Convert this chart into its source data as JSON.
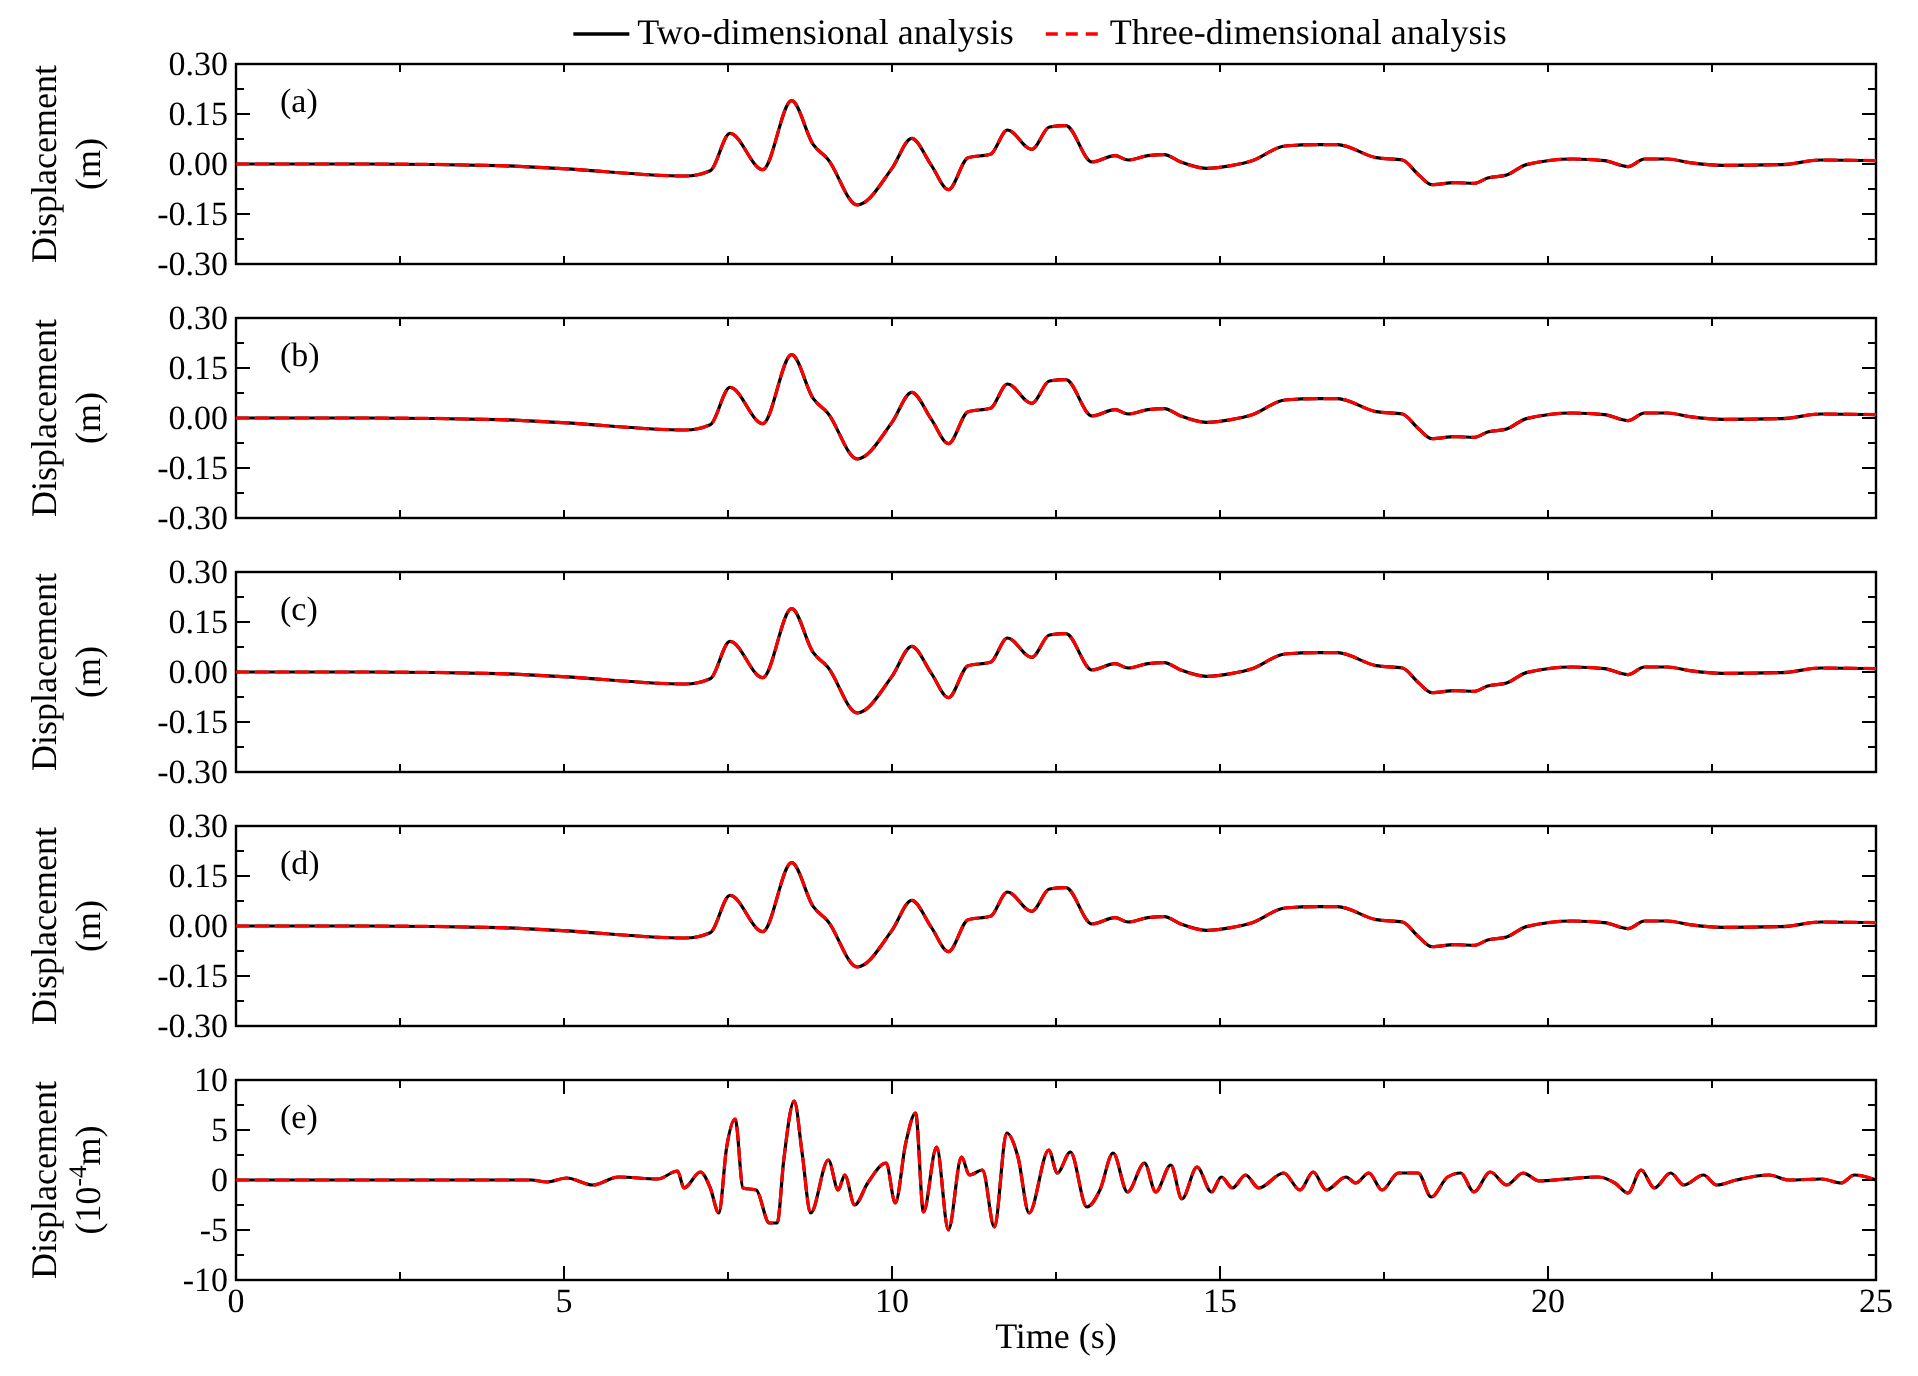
{
  "chart_data": [
    {
      "type": "line",
      "ylabel": "Displacement (m)",
      "annotations": [
        "(a)"
      ],
      "legend": "top",
      "tick_labels": "y",
      "xlim": [
        0,
        25
      ],
      "xticks": [
        {
          "value": 0,
          "label": null
        },
        {
          "value": 2.5,
          "label": null
        },
        {
          "value": 5,
          "label": null
        },
        {
          "value": 7.5,
          "label": null
        },
        {
          "value": 10,
          "label": null
        },
        {
          "value": 12.5,
          "label": null
        },
        {
          "value": 15,
          "label": null
        },
        {
          "value": 17.5,
          "label": null
        },
        {
          "value": 20,
          "label": null
        },
        {
          "value": 22.5,
          "label": null
        },
        {
          "value": 25,
          "label": null
        }
      ],
      "ylim": [
        -0.3,
        0.3
      ],
      "yticks": [
        {
          "value": -0.3,
          "label": "-0.30"
        },
        {
          "value": -0.225,
          "label": null
        },
        {
          "value": -0.15,
          "label": "-0.15"
        },
        {
          "value": -0.075,
          "label": null
        },
        {
          "value": 0,
          "label": "0.00"
        },
        {
          "value": 0.075,
          "label": null
        },
        {
          "value": 0.15,
          "label": "0.15"
        },
        {
          "value": 0.225,
          "label": null
        },
        {
          "value": 0.3,
          "label": "0.30"
        }
      ],
      "x": [
        0,
        2,
        4,
        4.9,
        6.85,
        7.23,
        7.53,
        8.03,
        8.47,
        8.8,
        9.02,
        9.47,
        10.0,
        10.3,
        10.6,
        10.86,
        11.16,
        11.5,
        11.76,
        12.13,
        12.4,
        12.65,
        13.05,
        13.4,
        13.6,
        13.9,
        14.15,
        14.4,
        14.79,
        15.19,
        15.49,
        15.99,
        16.49,
        16.79,
        17.38,
        17.78,
        18.03,
        18.23,
        18.58,
        18.88,
        19.08,
        19.37,
        19.67,
        20.37,
        20.86,
        21.22,
        21.47,
        21.82,
        22.16,
        22.66,
        23.56,
        24.16,
        25
      ],
      "series": [
        {
          "name": "Two-dimensional analysis",
          "color": "#000000",
          "line_style": "solid",
          "values": [
            0,
            0,
            -0.005,
            -0.013,
            -0.036,
            -0.02,
            0.092,
            -0.017,
            0.19,
            0.058,
            0.015,
            -0.123,
            -0.013,
            0.077,
            -0.004,
            -0.077,
            0.019,
            0.029,
            0.102,
            0.044,
            0.111,
            0.115,
            0.006,
            0.025,
            0.012,
            0.025,
            0.028,
            0.006,
            -0.013,
            -0.004,
            0.01,
            0.054,
            0.058,
            0.058,
            0.019,
            0.012,
            -0.033,
            -0.062,
            -0.056,
            -0.058,
            -0.042,
            -0.033,
            -0.002,
            0.015,
            0.01,
            -0.008,
            0.015,
            0.015,
            0.004,
            -0.004,
            -0.002,
            0.012,
            0.01
          ]
        },
        {
          "name": "Three-dimensional analysis",
          "color": "#ff0000",
          "line_style": "dashed",
          "values": [
            0,
            0,
            -0.005,
            -0.013,
            -0.036,
            -0.02,
            0.092,
            -0.017,
            0.19,
            0.058,
            0.015,
            -0.123,
            -0.013,
            0.077,
            -0.004,
            -0.077,
            0.019,
            0.029,
            0.102,
            0.044,
            0.111,
            0.115,
            0.006,
            0.025,
            0.012,
            0.025,
            0.028,
            0.006,
            -0.013,
            -0.004,
            0.01,
            0.054,
            0.058,
            0.058,
            0.019,
            0.012,
            -0.033,
            -0.062,
            -0.056,
            -0.058,
            -0.042,
            -0.033,
            -0.002,
            0.015,
            0.01,
            -0.008,
            0.015,
            0.015,
            0.004,
            -0.004,
            -0.002,
            0.012,
            0.01
          ]
        }
      ]
    },
    {
      "type": "line",
      "ylabel": "Displacement (m)",
      "annotations": [
        "(b)"
      ],
      "tick_labels": "y",
      "xlim": [
        0,
        25
      ],
      "xticks": [
        {
          "value": 0,
          "label": null
        },
        {
          "value": 2.5,
          "label": null
        },
        {
          "value": 5,
          "label": null
        },
        {
          "value": 7.5,
          "label": null
        },
        {
          "value": 10,
          "label": null
        },
        {
          "value": 12.5,
          "label": null
        },
        {
          "value": 15,
          "label": null
        },
        {
          "value": 17.5,
          "label": null
        },
        {
          "value": 20,
          "label": null
        },
        {
          "value": 22.5,
          "label": null
        },
        {
          "value": 25,
          "label": null
        }
      ],
      "ylim": [
        -0.3,
        0.3
      ],
      "yticks": [
        {
          "value": -0.3,
          "label": "-0.30"
        },
        {
          "value": -0.225,
          "label": null
        },
        {
          "value": -0.15,
          "label": "-0.15"
        },
        {
          "value": -0.075,
          "label": null
        },
        {
          "value": 0,
          "label": "0.00"
        },
        {
          "value": 0.075,
          "label": null
        },
        {
          "value": 0.15,
          "label": "0.15"
        },
        {
          "value": 0.225,
          "label": null
        },
        {
          "value": 0.3,
          "label": "0.30"
        }
      ],
      "x": [
        0,
        2,
        4,
        4.9,
        6.85,
        7.23,
        7.53,
        8.03,
        8.47,
        8.8,
        9.02,
        9.47,
        10.0,
        10.3,
        10.6,
        10.86,
        11.16,
        11.5,
        11.76,
        12.13,
        12.4,
        12.65,
        13.05,
        13.4,
        13.6,
        13.9,
        14.15,
        14.4,
        14.79,
        15.19,
        15.49,
        15.99,
        16.49,
        16.79,
        17.38,
        17.78,
        18.03,
        18.23,
        18.58,
        18.88,
        19.08,
        19.37,
        19.67,
        20.37,
        20.86,
        21.22,
        21.47,
        21.82,
        22.16,
        22.66,
        23.56,
        24.16,
        25
      ],
      "series": [
        {
          "color": "#000000",
          "line_style": "solid",
          "values": [
            0,
            0,
            -0.005,
            -0.013,
            -0.036,
            -0.02,
            0.092,
            -0.017,
            0.19,
            0.058,
            0.015,
            -0.123,
            -0.013,
            0.077,
            -0.004,
            -0.077,
            0.019,
            0.029,
            0.102,
            0.044,
            0.111,
            0.115,
            0.006,
            0.025,
            0.012,
            0.025,
            0.028,
            0.006,
            -0.013,
            -0.004,
            0.01,
            0.054,
            0.058,
            0.058,
            0.019,
            0.012,
            -0.033,
            -0.062,
            -0.056,
            -0.058,
            -0.042,
            -0.033,
            -0.002,
            0.015,
            0.01,
            -0.008,
            0.015,
            0.015,
            0.004,
            -0.004,
            -0.002,
            0.012,
            0.01
          ]
        },
        {
          "color": "#ff0000",
          "line_style": "dashed",
          "values": [
            0,
            0,
            -0.005,
            -0.013,
            -0.036,
            -0.02,
            0.092,
            -0.017,
            0.19,
            0.058,
            0.015,
            -0.123,
            -0.013,
            0.077,
            -0.004,
            -0.077,
            0.019,
            0.029,
            0.102,
            0.044,
            0.111,
            0.115,
            0.006,
            0.025,
            0.012,
            0.025,
            0.028,
            0.006,
            -0.013,
            -0.004,
            0.01,
            0.054,
            0.058,
            0.058,
            0.019,
            0.012,
            -0.033,
            -0.062,
            -0.056,
            -0.058,
            -0.042,
            -0.033,
            -0.002,
            0.015,
            0.01,
            -0.008,
            0.015,
            0.015,
            0.004,
            -0.004,
            -0.002,
            0.012,
            0.01
          ]
        }
      ]
    },
    {
      "type": "line",
      "ylabel": "Displacement (m)",
      "annotations": [
        "(c)"
      ],
      "tick_labels": "y",
      "xlim": [
        0,
        25
      ],
      "xticks": [
        {
          "value": 0,
          "label": null
        },
        {
          "value": 2.5,
          "label": null
        },
        {
          "value": 5,
          "label": null
        },
        {
          "value": 7.5,
          "label": null
        },
        {
          "value": 10,
          "label": null
        },
        {
          "value": 12.5,
          "label": null
        },
        {
          "value": 15,
          "label": null
        },
        {
          "value": 17.5,
          "label": null
        },
        {
          "value": 20,
          "label": null
        },
        {
          "value": 22.5,
          "label": null
        },
        {
          "value": 25,
          "label": null
        }
      ],
      "ylim": [
        -0.3,
        0.3
      ],
      "yticks": [
        {
          "value": -0.3,
          "label": "-0.30"
        },
        {
          "value": -0.225,
          "label": null
        },
        {
          "value": -0.15,
          "label": "-0.15"
        },
        {
          "value": -0.075,
          "label": null
        },
        {
          "value": 0,
          "label": "0.00"
        },
        {
          "value": 0.075,
          "label": null
        },
        {
          "value": 0.15,
          "label": "0.15"
        },
        {
          "value": 0.225,
          "label": null
        },
        {
          "value": 0.3,
          "label": "0.30"
        }
      ],
      "x": [
        0,
        2,
        4,
        4.9,
        6.85,
        7.23,
        7.53,
        8.03,
        8.47,
        8.8,
        9.02,
        9.47,
        10.0,
        10.3,
        10.6,
        10.86,
        11.16,
        11.5,
        11.76,
        12.13,
        12.4,
        12.65,
        13.05,
        13.4,
        13.6,
        13.9,
        14.15,
        14.4,
        14.79,
        15.19,
        15.49,
        15.99,
        16.49,
        16.79,
        17.38,
        17.78,
        18.03,
        18.23,
        18.58,
        18.88,
        19.08,
        19.37,
        19.67,
        20.37,
        20.86,
        21.22,
        21.47,
        21.82,
        22.16,
        22.66,
        23.56,
        24.16,
        25
      ],
      "series": [
        {
          "color": "#000000",
          "line_style": "solid",
          "values": [
            0,
            0,
            -0.005,
            -0.013,
            -0.036,
            -0.02,
            0.092,
            -0.017,
            0.19,
            0.058,
            0.015,
            -0.123,
            -0.013,
            0.077,
            -0.004,
            -0.077,
            0.019,
            0.029,
            0.102,
            0.044,
            0.111,
            0.115,
            0.006,
            0.025,
            0.012,
            0.025,
            0.028,
            0.006,
            -0.013,
            -0.004,
            0.01,
            0.054,
            0.058,
            0.058,
            0.019,
            0.012,
            -0.033,
            -0.062,
            -0.056,
            -0.058,
            -0.042,
            -0.033,
            -0.002,
            0.015,
            0.01,
            -0.008,
            0.015,
            0.015,
            0.004,
            -0.004,
            -0.002,
            0.012,
            0.01
          ]
        },
        {
          "color": "#ff0000",
          "line_style": "dashed",
          "values": [
            0,
            0,
            -0.005,
            -0.013,
            -0.036,
            -0.02,
            0.092,
            -0.017,
            0.19,
            0.058,
            0.015,
            -0.123,
            -0.013,
            0.077,
            -0.004,
            -0.077,
            0.019,
            0.029,
            0.102,
            0.044,
            0.111,
            0.115,
            0.006,
            0.025,
            0.012,
            0.025,
            0.028,
            0.006,
            -0.013,
            -0.004,
            0.01,
            0.054,
            0.058,
            0.058,
            0.019,
            0.012,
            -0.033,
            -0.062,
            -0.056,
            -0.058,
            -0.042,
            -0.033,
            -0.002,
            0.015,
            0.01,
            -0.008,
            0.015,
            0.015,
            0.004,
            -0.004,
            -0.002,
            0.012,
            0.01
          ]
        }
      ]
    },
    {
      "type": "line",
      "ylabel": "Displacement (m)",
      "annotations": [
        "(d)"
      ],
      "tick_labels": "y",
      "xlim": [
        0,
        25
      ],
      "xticks": [
        {
          "value": 0,
          "label": null
        },
        {
          "value": 2.5,
          "label": null
        },
        {
          "value": 5,
          "label": null
        },
        {
          "value": 7.5,
          "label": null
        },
        {
          "value": 10,
          "label": null
        },
        {
          "value": 12.5,
          "label": null
        },
        {
          "value": 15,
          "label": null
        },
        {
          "value": 17.5,
          "label": null
        },
        {
          "value": 20,
          "label": null
        },
        {
          "value": 22.5,
          "label": null
        },
        {
          "value": 25,
          "label": null
        }
      ],
      "ylim": [
        -0.3,
        0.3
      ],
      "yticks": [
        {
          "value": -0.3,
          "label": "-0.30"
        },
        {
          "value": -0.225,
          "label": null
        },
        {
          "value": -0.15,
          "label": "-0.15"
        },
        {
          "value": -0.075,
          "label": null
        },
        {
          "value": 0,
          "label": "0.00"
        },
        {
          "value": 0.075,
          "label": null
        },
        {
          "value": 0.15,
          "label": "0.15"
        },
        {
          "value": 0.225,
          "label": null
        },
        {
          "value": 0.3,
          "label": "0.30"
        }
      ],
      "x": [
        0,
        2,
        4,
        4.9,
        6.85,
        7.23,
        7.53,
        8.03,
        8.47,
        8.8,
        9.02,
        9.47,
        10.0,
        10.3,
        10.6,
        10.86,
        11.16,
        11.5,
        11.76,
        12.13,
        12.4,
        12.65,
        13.05,
        13.4,
        13.6,
        13.9,
        14.15,
        14.4,
        14.79,
        15.19,
        15.49,
        15.99,
        16.49,
        16.79,
        17.38,
        17.78,
        18.03,
        18.23,
        18.58,
        18.88,
        19.08,
        19.37,
        19.67,
        20.37,
        20.86,
        21.22,
        21.47,
        21.82,
        22.16,
        22.66,
        23.56,
        24.16,
        25
      ],
      "series": [
        {
          "color": "#000000",
          "line_style": "solid",
          "values": [
            0,
            0,
            -0.005,
            -0.013,
            -0.036,
            -0.02,
            0.092,
            -0.017,
            0.19,
            0.058,
            0.015,
            -0.123,
            -0.013,
            0.077,
            -0.004,
            -0.077,
            0.019,
            0.029,
            0.102,
            0.044,
            0.111,
            0.115,
            0.006,
            0.025,
            0.012,
            0.025,
            0.028,
            0.006,
            -0.013,
            -0.004,
            0.01,
            0.054,
            0.058,
            0.058,
            0.019,
            0.012,
            -0.033,
            -0.062,
            -0.056,
            -0.058,
            -0.042,
            -0.033,
            -0.002,
            0.015,
            0.01,
            -0.008,
            0.015,
            0.015,
            0.004,
            -0.004,
            -0.002,
            0.012,
            0.01
          ]
        },
        {
          "color": "#ff0000",
          "line_style": "dashed",
          "values": [
            0,
            0,
            -0.005,
            -0.013,
            -0.036,
            -0.02,
            0.092,
            -0.017,
            0.19,
            0.058,
            0.015,
            -0.123,
            -0.013,
            0.077,
            -0.004,
            -0.077,
            0.019,
            0.029,
            0.102,
            0.044,
            0.111,
            0.115,
            0.006,
            0.025,
            0.012,
            0.025,
            0.028,
            0.006,
            -0.013,
            -0.004,
            0.01,
            0.054,
            0.058,
            0.058,
            0.019,
            0.012,
            -0.033,
            -0.062,
            -0.056,
            -0.058,
            -0.042,
            -0.033,
            -0.002,
            0.015,
            0.01,
            -0.008,
            0.015,
            0.015,
            0.004,
            -0.004,
            -0.002,
            0.012,
            0.01
          ]
        }
      ]
    },
    {
      "type": "line",
      "xlabel": "Time (s)",
      "ylabel": "Displacement (10$^{-4}$m)",
      "annotations": [
        "(e)"
      ],
      "xlim": [
        0,
        25
      ],
      "xticks": [
        0,
        {
          "value": 2.5,
          "label": null
        },
        5,
        {
          "value": 7.5,
          "label": null
        },
        10,
        {
          "value": 12.5,
          "label": null
        },
        15,
        {
          "value": 17.5,
          "label": null
        },
        20,
        {
          "value": 22.5,
          "label": null
        },
        25
      ],
      "ylim": [
        -10,
        10
      ],
      "yticks": [
        -10,
        {
          "value": -7.5,
          "label": null
        },
        -5,
        {
          "value": -2.5,
          "label": null
        },
        0,
        {
          "value": 2.5,
          "label": null
        },
        5,
        {
          "value": 7.5,
          "label": null
        },
        10
      ],
      "x": [
        0,
        4.5,
        4.74,
        5.04,
        5.44,
        5.83,
        6.43,
        6.73,
        6.83,
        7.08,
        7.23,
        7.36,
        7.48,
        7.61,
        7.73,
        7.93,
        8.13,
        8.25,
        8.35,
        8.51,
        8.63,
        8.76,
        9.03,
        9.18,
        9.28,
        9.43,
        9.63,
        9.91,
        10.05,
        10.21,
        10.36,
        10.48,
        10.68,
        10.86,
        11.06,
        11.18,
        11.38,
        11.56,
        11.75,
        11.92,
        12.09,
        12.39,
        12.52,
        12.72,
        12.97,
        13.17,
        13.37,
        13.59,
        13.85,
        14.02,
        14.25,
        14.42,
        14.65,
        14.87,
        15.02,
        15.19,
        15.39,
        15.59,
        15.97,
        16.22,
        16.42,
        16.62,
        16.92,
        17.07,
        17.27,
        17.47,
        17.72,
        18.02,
        18.22,
        18.47,
        18.67,
        18.87,
        19.12,
        19.37,
        19.62,
        19.87,
        20.27,
        20.77,
        21.02,
        21.22,
        21.42,
        21.62,
        21.87,
        22.07,
        22.37,
        22.57,
        22.87,
        23.37,
        23.67,
        24.17,
        24.47,
        24.67,
        25
      ],
      "series": [
        {
          "color": "#000000",
          "line_style": "solid",
          "values": [
            0,
            0,
            -0.2,
            0.2,
            -0.5,
            0.3,
            0.1,
            0.9,
            -0.8,
            0.8,
            -0.8,
            -3.3,
            3.3,
            6.1,
            -0.8,
            -1.0,
            -4.3,
            -4.3,
            2.0,
            7.9,
            2.7,
            -3.3,
            2.0,
            -1.0,
            0.5,
            -2.5,
            -0.3,
            1.7,
            -2.3,
            3.7,
            6.7,
            -3.2,
            3.3,
            -5.0,
            2.3,
            0.5,
            1.0,
            -4.7,
            4.7,
            2.3,
            -3.3,
            3.0,
            0.7,
            2.8,
            -2.7,
            -1.0,
            2.7,
            -1.2,
            1.7,
            -1.2,
            1.5,
            -1.9,
            1.3,
            -1.2,
            0.3,
            -0.8,
            0.5,
            -0.8,
            0.7,
            -1.0,
            0.8,
            -1.0,
            0.3,
            -0.3,
            0.7,
            -1.0,
            0.7,
            0.7,
            -1.7,
            0.3,
            0.7,
            -1.2,
            0.8,
            -0.5,
            0.7,
            -0.1,
            0.1,
            0.3,
            -0.3,
            -1.3,
            1.0,
            -0.8,
            0.7,
            -0.5,
            0.5,
            -0.5,
            0,
            0.5,
            0,
            0.1,
            -0.3,
            0.5,
            0
          ]
        },
        {
          "color": "#ff0000",
          "line_style": "dashed",
          "values": [
            0,
            0,
            -0.2,
            0.2,
            -0.5,
            0.3,
            0.1,
            0.9,
            -0.8,
            0.8,
            -0.8,
            -3.3,
            3.3,
            6.1,
            -0.8,
            -1.0,
            -4.3,
            -4.3,
            2.0,
            7.9,
            2.7,
            -3.3,
            2.0,
            -1.0,
            0.5,
            -2.5,
            -0.3,
            1.7,
            -2.3,
            3.7,
            6.7,
            -3.2,
            3.3,
            -5.0,
            2.3,
            0.5,
            1.0,
            -4.7,
            4.7,
            2.3,
            -3.3,
            3.0,
            0.7,
            2.8,
            -2.7,
            -1.0,
            2.7,
            -1.2,
            1.7,
            -1.2,
            1.5,
            -1.9,
            1.3,
            -1.2,
            0.3,
            -0.8,
            0.5,
            -0.8,
            0.7,
            -1.0,
            0.8,
            -1.0,
            0.3,
            -0.3,
            0.7,
            -1.0,
            0.7,
            0.7,
            -1.7,
            0.3,
            0.7,
            -1.2,
            0.8,
            -0.5,
            0.7,
            -0.1,
            0.1,
            0.3,
            -0.3,
            -1.3,
            1.0,
            -0.8,
            0.7,
            -0.5,
            0.5,
            -0.5,
            0,
            0.5,
            0,
            0.1,
            -0.3,
            0.5,
            0
          ]
        }
      ]
    }
  ]
}
